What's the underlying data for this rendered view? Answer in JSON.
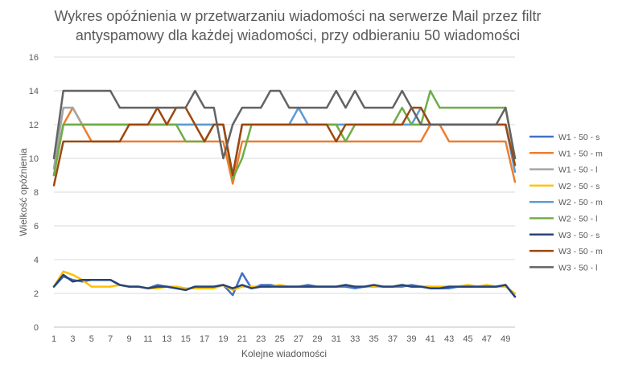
{
  "chart_data": {
    "type": "line",
    "title_lines": [
      "Wykres opóźnienia w przetwarzaniu wiadomości na serwerze Mail przez filtr",
      "antyspamowy dla każdej wiadomości, przy odbieraniu 50 wiadomości"
    ],
    "xlabel": "Kolejne wiadomości",
    "ylabel": "Wielkość opóźnienia",
    "ylim": [
      0,
      16
    ],
    "y_ticks": [
      0,
      2,
      4,
      6,
      8,
      10,
      12,
      14,
      16
    ],
    "x": [
      1,
      2,
      3,
      4,
      5,
      6,
      7,
      8,
      9,
      10,
      11,
      12,
      13,
      14,
      15,
      16,
      17,
      18,
      19,
      20,
      21,
      22,
      23,
      24,
      25,
      26,
      27,
      28,
      29,
      30,
      31,
      32,
      33,
      34,
      35,
      36,
      37,
      38,
      39,
      40,
      41,
      42,
      43,
      44,
      45,
      46,
      47,
      48,
      49,
      50
    ],
    "x_tick_labels": [
      1,
      3,
      5,
      7,
      9,
      11,
      13,
      15,
      17,
      19,
      21,
      23,
      25,
      27,
      29,
      31,
      33,
      35,
      37,
      39,
      41,
      43,
      45,
      47,
      49
    ],
    "grid": "horizontal",
    "legend_position": "right",
    "series": [
      {
        "name": "W1 - 50 - s",
        "color": "#4472C4",
        "values": [
          2.4,
          3.0,
          2.8,
          2.7,
          2.8,
          2.8,
          2.8,
          2.5,
          2.4,
          2.4,
          2.3,
          2.5,
          2.4,
          2.3,
          2.2,
          2.4,
          2.4,
          2.4,
          2.5,
          1.9,
          3.2,
          2.3,
          2.5,
          2.5,
          2.4,
          2.4,
          2.4,
          2.5,
          2.4,
          2.4,
          2.4,
          2.4,
          2.3,
          2.4,
          2.4,
          2.4,
          2.4,
          2.4,
          2.5,
          2.4,
          2.4,
          2.3,
          2.3,
          2.4,
          2.4,
          2.4,
          2.4,
          2.4,
          2.5,
          1.8
        ]
      },
      {
        "name": "W1 - 50 - m",
        "color": "#ED7D31",
        "values": [
          9.0,
          12.0,
          13.0,
          12.0,
          11.0,
          11.0,
          11.0,
          11.0,
          11.0,
          11.0,
          11.0,
          11.0,
          11.0,
          11.0,
          11.0,
          11.0,
          11.0,
          11.0,
          11.0,
          8.5,
          11.0,
          11.0,
          11.0,
          11.0,
          11.0,
          11.0,
          11.0,
          11.0,
          11.0,
          11.0,
          11.0,
          11.0,
          11.0,
          11.0,
          11.0,
          11.0,
          11.0,
          11.0,
          11.0,
          11.0,
          12.0,
          12.0,
          11.0,
          11.0,
          11.0,
          11.0,
          11.0,
          11.0,
          11.0,
          8.6
        ]
      },
      {
        "name": "W1 - 50 - l",
        "color": "#A5A5A5",
        "values": [
          9.4,
          13.0,
          13.0,
          12.0,
          12.0,
          12.0,
          12.0,
          12.0,
          12.0,
          12.0,
          12.0,
          12.0,
          12.0,
          12.0,
          12.0,
          12.0,
          12.0,
          12.0,
          12.0,
          9.0,
          12.0,
          12.0,
          12.0,
          12.0,
          12.0,
          12.0,
          12.0,
          12.0,
          12.0,
          12.0,
          12.0,
          12.0,
          12.0,
          12.0,
          12.0,
          12.0,
          12.0,
          12.0,
          12.0,
          12.0,
          12.0,
          12.0,
          12.0,
          12.0,
          12.0,
          12.0,
          12.0,
          12.0,
          12.0,
          9.6
        ]
      },
      {
        "name": "W2 - 50 - s",
        "color": "#FFC000",
        "values": [
          2.4,
          3.3,
          3.1,
          2.8,
          2.4,
          2.4,
          2.4,
          2.5,
          2.4,
          2.4,
          2.3,
          2.3,
          2.4,
          2.4,
          2.3,
          2.3,
          2.3,
          2.3,
          2.5,
          2.2,
          2.4,
          2.4,
          2.4,
          2.4,
          2.5,
          2.4,
          2.4,
          2.4,
          2.4,
          2.4,
          2.4,
          2.5,
          2.4,
          2.4,
          2.4,
          2.4,
          2.4,
          2.5,
          2.4,
          2.4,
          2.4,
          2.4,
          2.4,
          2.4,
          2.5,
          2.4,
          2.5,
          2.4,
          2.4,
          2.0
        ]
      },
      {
        "name": "W2 - 50 - m",
        "color": "#5B9BD5",
        "values": [
          9.0,
          12.0,
          12.0,
          12.0,
          12.0,
          12.0,
          12.0,
          12.0,
          12.0,
          12.0,
          12.0,
          12.0,
          12.0,
          12.0,
          12.0,
          12.0,
          12.0,
          12.0,
          12.0,
          9.0,
          12.0,
          12.0,
          12.0,
          12.0,
          12.0,
          12.0,
          13.0,
          12.0,
          12.0,
          12.0,
          12.0,
          12.0,
          12.0,
          12.0,
          12.0,
          12.0,
          12.0,
          12.0,
          12.0,
          13.0,
          12.0,
          12.0,
          12.0,
          12.0,
          12.0,
          12.0,
          12.0,
          12.0,
          12.0,
          9.2
        ]
      },
      {
        "name": "W2 - 50 - l",
        "color": "#70AD47",
        "values": [
          9.0,
          12.0,
          12.0,
          12.0,
          12.0,
          12.0,
          12.0,
          12.0,
          12.0,
          12.0,
          12.0,
          12.0,
          12.0,
          12.0,
          11.0,
          11.0,
          11.0,
          12.0,
          12.0,
          8.8,
          10.0,
          12.0,
          12.0,
          12.0,
          12.0,
          12.0,
          12.0,
          12.0,
          12.0,
          12.0,
          12.0,
          11.0,
          12.0,
          12.0,
          12.0,
          12.0,
          12.0,
          13.0,
          12.0,
          12.0,
          14.0,
          13.0,
          13.0,
          13.0,
          13.0,
          13.0,
          13.0,
          13.0,
          13.0,
          10.0
        ]
      },
      {
        "name": "W3 - 50 - s",
        "color": "#264478",
        "values": [
          2.4,
          3.1,
          2.7,
          2.8,
          2.8,
          2.8,
          2.8,
          2.5,
          2.4,
          2.4,
          2.3,
          2.4,
          2.4,
          2.3,
          2.2,
          2.4,
          2.4,
          2.4,
          2.5,
          2.3,
          2.5,
          2.3,
          2.4,
          2.4,
          2.4,
          2.4,
          2.4,
          2.4,
          2.4,
          2.4,
          2.4,
          2.5,
          2.4,
          2.4,
          2.5,
          2.4,
          2.4,
          2.5,
          2.4,
          2.4,
          2.3,
          2.3,
          2.4,
          2.4,
          2.4,
          2.4,
          2.4,
          2.4,
          2.5,
          1.8
        ]
      },
      {
        "name": "W3 - 50 - m",
        "color": "#9E480E",
        "values": [
          8.4,
          11.0,
          11.0,
          11.0,
          11.0,
          11.0,
          11.0,
          11.0,
          12.0,
          12.0,
          12.0,
          13.0,
          12.0,
          13.0,
          13.0,
          12.0,
          11.0,
          12.0,
          12.0,
          9.0,
          12.0,
          12.0,
          12.0,
          12.0,
          12.0,
          12.0,
          12.0,
          12.0,
          12.0,
          12.0,
          11.0,
          12.0,
          12.0,
          12.0,
          12.0,
          12.0,
          12.0,
          12.0,
          13.0,
          13.0,
          12.0,
          12.0,
          12.0,
          12.0,
          12.0,
          12.0,
          12.0,
          12.0,
          12.0,
          9.6
        ]
      },
      {
        "name": "W3 - 50 - l",
        "color": "#636363",
        "values": [
          10.0,
          14.0,
          14.0,
          14.0,
          14.0,
          14.0,
          14.0,
          13.0,
          13.0,
          13.0,
          13.0,
          13.0,
          13.0,
          13.0,
          13.0,
          14.0,
          13.0,
          13.0,
          10.0,
          12.0,
          13.0,
          13.0,
          13.0,
          14.0,
          14.0,
          13.0,
          13.0,
          13.0,
          13.0,
          13.0,
          14.0,
          13.0,
          14.0,
          13.0,
          13.0,
          13.0,
          13.0,
          14.0,
          13.0,
          12.0,
          12.0,
          12.0,
          12.0,
          12.0,
          12.0,
          12.0,
          12.0,
          12.0,
          13.0,
          10.0
        ]
      }
    ]
  }
}
